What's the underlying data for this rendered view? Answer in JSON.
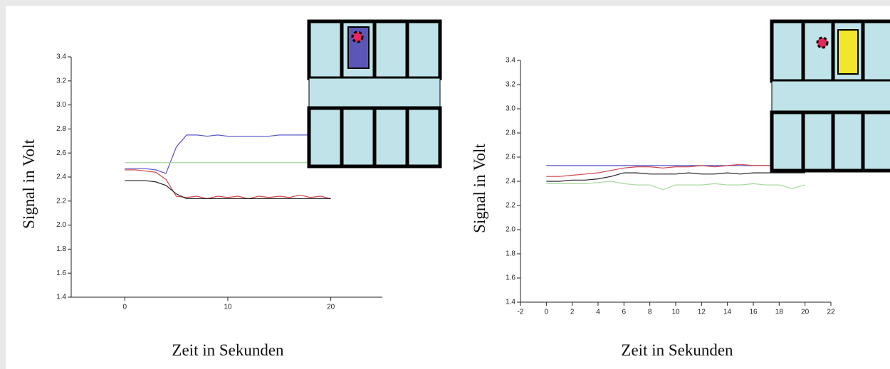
{
  "chart_data": [
    {
      "type": "line",
      "x_label": "Zeit in Sekunden",
      "y_label": "Signal in Volt",
      "xlim": [
        -5.2,
        25
      ],
      "xticks": [
        0,
        10,
        20
      ],
      "ylim": [
        1.4,
        3.4
      ],
      "yticks": [
        1.4,
        1.6,
        1.8,
        {
          "value": 2,
          "label": "2.0"
        },
        2.2,
        2.4,
        2.6,
        2.8,
        {
          "value": 3,
          "label": "3.0"
        },
        3.2,
        3.4
      ],
      "x": [
        0,
        1,
        2,
        3,
        4,
        5,
        6,
        7,
        8,
        9,
        10,
        11,
        12,
        13,
        14,
        15,
        16,
        17,
        18,
        19,
        20
      ],
      "series": [
        {
          "color": "#5a55c8",
          "values": [
            2.47,
            2.47,
            2.47,
            2.46,
            2.43,
            2.65,
            2.75,
            2.75,
            2.74,
            2.75,
            2.74,
            2.74,
            2.74,
            2.74,
            2.74,
            2.75,
            2.75,
            2.75,
            2.75,
            2.75,
            2.75
          ]
        },
        {
          "color": "#a8d8a0",
          "values": [
            2.52,
            2.52,
            2.52,
            2.52,
            2.52,
            2.52,
            2.52,
            2.52,
            2.52,
            2.52,
            2.52,
            2.52,
            2.52,
            2.52,
            2.52,
            2.52,
            2.52,
            2.52,
            2.52,
            2.52,
            2.52
          ]
        },
        {
          "color": "#d0454a",
          "values": [
            2.46,
            2.46,
            2.45,
            2.44,
            2.38,
            2.24,
            2.23,
            2.24,
            2.22,
            2.24,
            2.23,
            2.24,
            2.22,
            2.24,
            2.23,
            2.24,
            2.23,
            2.25,
            2.23,
            2.24,
            2.22
          ]
        },
        {
          "color": "#222222",
          "values": [
            2.37,
            2.37,
            2.37,
            2.36,
            2.33,
            2.26,
            2.22,
            2.22,
            2.22,
            2.22,
            2.22,
            2.22,
            2.22,
            2.22,
            2.22,
            2.22,
            2.22,
            2.22,
            2.22,
            2.22,
            2.22
          ]
        }
      ]
    },
    {
      "type": "line",
      "x_label": "Zeit in Sekunden",
      "y_label": "Signal in Volt",
      "xlim": [
        -2,
        22
      ],
      "xticks": [
        -2,
        0,
        2,
        4,
        6,
        8,
        10,
        12,
        14,
        16,
        18,
        20,
        22
      ],
      "ylim": [
        1.4,
        3.4
      ],
      "yticks": [
        1.4,
        1.6,
        1.8,
        {
          "value": 2,
          "label": "2.0"
        },
        2.2,
        2.4,
        2.6,
        2.8,
        {
          "value": 3,
          "label": "3.0"
        },
        3.2,
        3.4
      ],
      "x": [
        0,
        1,
        2,
        3,
        4,
        5,
        6,
        7,
        8,
        9,
        10,
        11,
        12,
        13,
        14,
        15,
        16,
        17,
        18,
        19,
        20
      ],
      "series": [
        {
          "color": "#5a55c8",
          "values": [
            2.53,
            2.53,
            2.53,
            2.53,
            2.53,
            2.53,
            2.53,
            2.53,
            2.53,
            2.53,
            2.53,
            2.53,
            2.53,
            2.53,
            2.53,
            2.53,
            2.53,
            2.53,
            2.53,
            2.53,
            2.53
          ]
        },
        {
          "color": "#d0454a",
          "values": [
            2.44,
            2.44,
            2.45,
            2.46,
            2.47,
            2.49,
            2.51,
            2.52,
            2.52,
            2.51,
            2.52,
            2.52,
            2.53,
            2.52,
            2.53,
            2.54,
            2.53,
            2.53,
            2.53,
            2.53,
            2.53
          ]
        },
        {
          "color": "#222222",
          "values": [
            2.4,
            2.4,
            2.41,
            2.41,
            2.42,
            2.44,
            2.47,
            2.47,
            2.46,
            2.46,
            2.46,
            2.47,
            2.46,
            2.46,
            2.47,
            2.46,
            2.47,
            2.47,
            2.47,
            2.47,
            2.47
          ]
        },
        {
          "color": "#a8d8a0",
          "values": [
            2.38,
            2.38,
            2.38,
            2.38,
            2.39,
            2.4,
            2.38,
            2.37,
            2.37,
            2.33,
            2.37,
            2.37,
            2.37,
            2.38,
            2.37,
            2.37,
            2.38,
            2.37,
            2.37,
            2.34,
            2.37
          ]
        }
      ]
    }
  ]
}
